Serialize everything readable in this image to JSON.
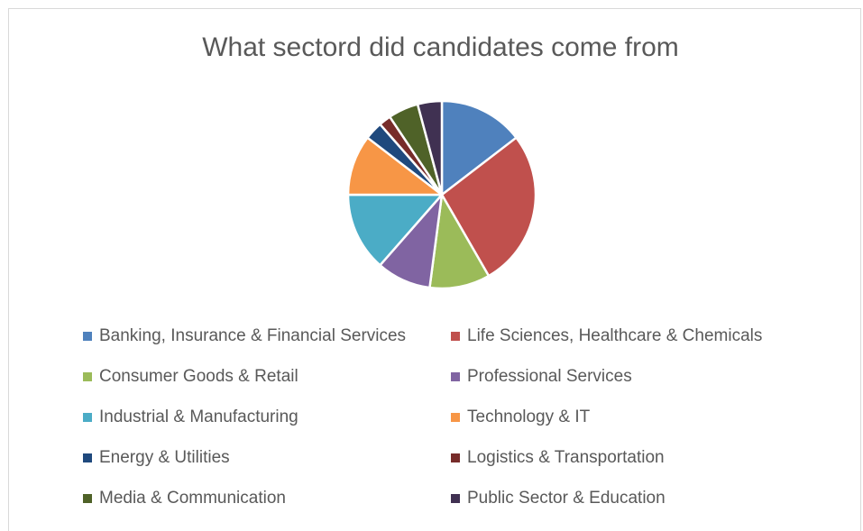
{
  "chart_data": {
    "type": "pie",
    "title": "What sectord did candidates come from",
    "legend_position": "bottom",
    "slices": [
      {
        "label": "Banking, Insurance & Financial Services",
        "value": 14,
        "color": "#4F81BD"
      },
      {
        "label": "Life Sciences, Healthcare & Chemicals",
        "value": 26,
        "color": "#C0504D"
      },
      {
        "label": "Consumer Goods & Retail",
        "value": 10,
        "color": "#9BBB59"
      },
      {
        "label": "Professional Services",
        "value": 9,
        "color": "#8064A2"
      },
      {
        "label": "Industrial & Manufacturing",
        "value": 13,
        "color": "#4BACC6"
      },
      {
        "label": "Technology & IT",
        "value": 10,
        "color": "#F79646"
      },
      {
        "label": "Energy & Utilities",
        "value": 3,
        "color": "#1F497D"
      },
      {
        "label": "Logistics & Transportation",
        "value": 2,
        "color": "#772C2A"
      },
      {
        "label": "Media & Communication",
        "value": 5,
        "color": "#4F6228"
      },
      {
        "label": "Public Sector & Education",
        "value": 4,
        "color": "#403152"
      }
    ]
  }
}
